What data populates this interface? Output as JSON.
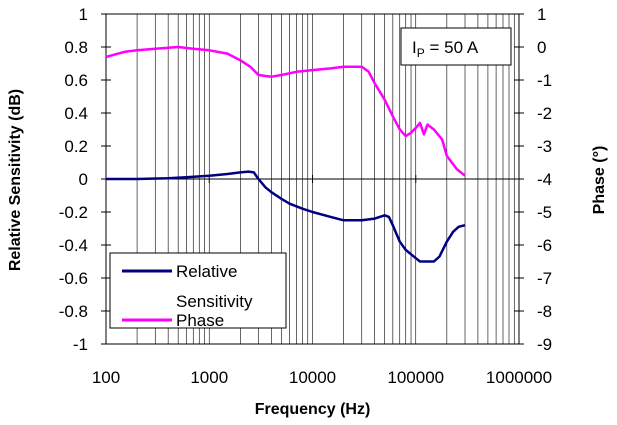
{
  "chart_data": {
    "type": "line",
    "xlabel": "Frequency (Hz)",
    "ylabel_left": "Relative Sensitivity (dB)",
    "ylabel_right": "Phase (°)",
    "x_scale": "log",
    "xlim": [
      100,
      1000000
    ],
    "ylim_left": [
      -1,
      1
    ],
    "ylim_right": [
      -9,
      1
    ],
    "x_ticks": [
      "100",
      "1000",
      "10000",
      "100000",
      "1000000"
    ],
    "y_ticks_left": [
      "1",
      "0.8",
      "0.6",
      "0.4",
      "0.2",
      "0",
      "-0.2",
      "-0.4",
      "-0.6",
      "-0.8",
      "-1"
    ],
    "y_ticks_right": [
      "1",
      "0",
      "-1",
      "-2",
      "-3",
      "-4",
      "-5",
      "-6",
      "-7",
      "-8",
      "-9"
    ],
    "grid": "vertical-log",
    "annotation": {
      "main": "I",
      "subscript": "P",
      "rest": " = 50 A"
    },
    "legend": {
      "position": "bottom-left",
      "entries": [
        "Relative",
        "Sensitivity",
        "Phase"
      ]
    },
    "series": [
      {
        "name": "Relative Sensitivity",
        "axis": "left",
        "color": "#000080",
        "points": [
          [
            100,
            0.0
          ],
          [
            200,
            0.0
          ],
          [
            400,
            0.005
          ],
          [
            600,
            0.01
          ],
          [
            1000,
            0.02
          ],
          [
            1500,
            0.03
          ],
          [
            2000,
            0.04
          ],
          [
            2400,
            0.045
          ],
          [
            2700,
            0.04
          ],
          [
            3000,
            0.0
          ],
          [
            3500,
            -0.05
          ],
          [
            4000,
            -0.08
          ],
          [
            5000,
            -0.12
          ],
          [
            6000,
            -0.15
          ],
          [
            8000,
            -0.18
          ],
          [
            10000,
            -0.2
          ],
          [
            15000,
            -0.23
          ],
          [
            20000,
            -0.25
          ],
          [
            30000,
            -0.25
          ],
          [
            40000,
            -0.24
          ],
          [
            50000,
            -0.22
          ],
          [
            55000,
            -0.23
          ],
          [
            60000,
            -0.28
          ],
          [
            70000,
            -0.38
          ],
          [
            80000,
            -0.43
          ],
          [
            100000,
            -0.48
          ],
          [
            110000,
            -0.5
          ],
          [
            130000,
            -0.5
          ],
          [
            150000,
            -0.5
          ],
          [
            170000,
            -0.47
          ],
          [
            200000,
            -0.38
          ],
          [
            230000,
            -0.32
          ],
          [
            260000,
            -0.29
          ],
          [
            300000,
            -0.28
          ]
        ]
      },
      {
        "name": "Phase",
        "axis": "right",
        "color": "#ff00ff",
        "points": [
          [
            100,
            -0.3
          ],
          [
            150,
            -0.15
          ],
          [
            200,
            -0.1
          ],
          [
            300,
            -0.05
          ],
          [
            500,
            0.0
          ],
          [
            700,
            -0.05
          ],
          [
            1000,
            -0.1
          ],
          [
            1500,
            -0.2
          ],
          [
            2000,
            -0.4
          ],
          [
            2500,
            -0.6
          ],
          [
            3000,
            -0.85
          ],
          [
            4000,
            -0.9
          ],
          [
            5000,
            -0.85
          ],
          [
            7000,
            -0.75
          ],
          [
            10000,
            -0.7
          ],
          [
            15000,
            -0.65
          ],
          [
            20000,
            -0.6
          ],
          [
            25000,
            -0.6
          ],
          [
            30000,
            -0.6
          ],
          [
            35000,
            -0.75
          ],
          [
            40000,
            -1.1
          ],
          [
            50000,
            -1.6
          ],
          [
            60000,
            -2.1
          ],
          [
            70000,
            -2.5
          ],
          [
            80000,
            -2.7
          ],
          [
            90000,
            -2.6
          ],
          [
            100000,
            -2.45
          ],
          [
            110000,
            -2.3
          ],
          [
            120000,
            -2.65
          ],
          [
            130000,
            -2.35
          ],
          [
            150000,
            -2.5
          ],
          [
            180000,
            -2.8
          ],
          [
            200000,
            -3.3
          ],
          [
            250000,
            -3.7
          ],
          [
            300000,
            -3.9
          ]
        ]
      }
    ]
  }
}
